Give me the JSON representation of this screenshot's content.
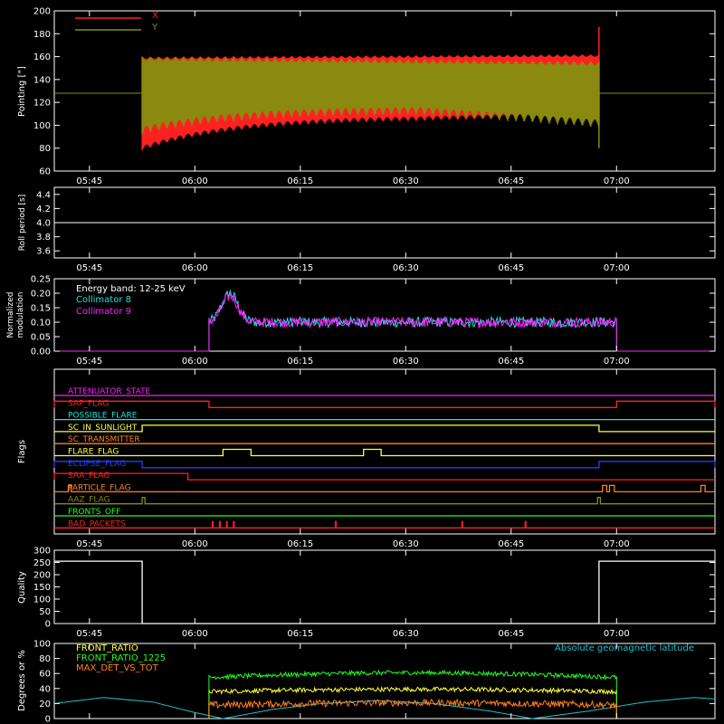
{
  "time_axis": {
    "t_min_minutes": 340,
    "t_max_minutes": 434,
    "ticks": [
      {
        "t": 345,
        "label": "05:45"
      },
      {
        "t": 360,
        "label": "06:00"
      },
      {
        "t": 375,
        "label": "06:15"
      },
      {
        "t": 390,
        "label": "06:30"
      },
      {
        "t": 405,
        "label": "06:45"
      },
      {
        "t": 420,
        "label": "07:00"
      }
    ]
  },
  "chart_data": [
    {
      "id": "pointing",
      "type": "line",
      "ylabel": "Pointing [\"]",
      "ylim": [
        60,
        200
      ],
      "yticks": [
        60,
        80,
        100,
        120,
        140,
        160,
        180,
        200
      ],
      "legend_position": "top-left",
      "baseline_y": 128,
      "series": [
        {
          "name": "X",
          "color": "#ff2020",
          "envelope": {
            "t_start": 352.5,
            "t_end": 417.5,
            "lower_start": 78,
            "lower_mid": 105,
            "lower_end": 107,
            "upper_start": 160,
            "upper_end": 162,
            "spike_end": 186
          }
        },
        {
          "name": "Y",
          "color": "#8a8a10",
          "envelope": {
            "t_start": 352.5,
            "t_end": 417.5,
            "lower_start": 92,
            "lower_mid": 110,
            "lower_end": 98,
            "upper_start": 160,
            "upper_end": 156,
            "spike_end": 80
          }
        }
      ]
    },
    {
      "id": "roll",
      "type": "line",
      "ylabel": "Roll period [s]",
      "ylim": [
        3.5,
        4.5
      ],
      "yticks": [
        3.6,
        3.8,
        4.0,
        4.2,
        4.4
      ],
      "series": [
        {
          "color": "#ffffff",
          "value": 4.0
        }
      ]
    },
    {
      "id": "modulation",
      "type": "line",
      "ylabel": [
        "Normalized",
        "modulation"
      ],
      "ylim": [
        0,
        0.25
      ],
      "yticks": [
        0.0,
        0.05,
        0.1,
        0.15,
        0.2,
        0.25
      ],
      "annotation": "Energy band: 12-25 keV",
      "t_start": 362,
      "t_end": 420,
      "series": [
        {
          "name": "Collimator 8",
          "color": "#20e0e0",
          "level": 0.1,
          "peak": 0.2,
          "peak_t": 365
        },
        {
          "name": "Collimator 9",
          "color": "#ff20ff",
          "level": 0.1,
          "peak": 0.19,
          "peak_t": 365
        }
      ]
    },
    {
      "id": "flags",
      "type": "line",
      "ylabel": "Flags",
      "series": [
        {
          "name": "ATTENUATOR_STATE",
          "color": "#ff20ff",
          "on": []
        },
        {
          "name": "SAP_FLAG",
          "color": "#ff2020",
          "on": [
            [
              340,
              362
            ],
            [
              420,
              434
            ]
          ]
        },
        {
          "name": "POSSIBLE_FLARE",
          "color": "#20e0e0",
          "on": []
        },
        {
          "name": "SC_IN_SUNLIGHT",
          "color": "#ffff40",
          "on": [
            [
              352.5,
              417.5
            ]
          ]
        },
        {
          "name": "SC_TRANSMITTER",
          "color": "#ff8020",
          "on": []
        },
        {
          "name": "FLARE_FLAG",
          "color": "#ffff40",
          "on": [
            [
              364,
              368
            ],
            [
              384,
              386.5
            ]
          ]
        },
        {
          "name": "ECLIPSE_FLAG",
          "color": "#2040ff",
          "on": [
            [
              340,
              352.5
            ],
            [
              417.5,
              434
            ]
          ]
        },
        {
          "name": "SAA_FLAG",
          "color": "#ff2020",
          "on": [
            [
              340,
              359
            ]
          ]
        },
        {
          "name": "PARTICLE_FLAG",
          "color": "#ff8020",
          "on": [
            [
              342,
              342.4
            ],
            [
              418,
              418.6
            ],
            [
              419,
              419.7
            ],
            [
              432,
              432.6
            ]
          ]
        },
        {
          "name": "AAZ_FLAG",
          "color": "#8a8a10",
          "on": [
            [
              352.5,
              352.9
            ],
            [
              417.3,
              417.7
            ]
          ]
        },
        {
          "name": "FRONTS_OFF",
          "color": "#20ff20",
          "on": []
        },
        {
          "name": "BAD_PACKETS",
          "color": "#ff2020",
          "on": [
            [
              362.5,
              362.6
            ],
            [
              363.5,
              363.6
            ],
            [
              364.5,
              364.6
            ],
            [
              365.5,
              365.6
            ],
            [
              380,
              380.1
            ],
            [
              398,
              398.1
            ],
            [
              407,
              407.1
            ]
          ]
        }
      ]
    },
    {
      "id": "quality",
      "type": "line",
      "ylabel": "Quality",
      "ylim": [
        0,
        300
      ],
      "yticks": [
        0,
        50,
        100,
        150,
        200,
        250,
        300
      ],
      "series": [
        {
          "color": "#ffffff",
          "segments": [
            [
              340,
              352.5,
              255
            ],
            [
              352.5,
              417.5,
              0
            ],
            [
              417.5,
              434,
              255
            ]
          ]
        }
      ]
    },
    {
      "id": "ratios",
      "type": "line",
      "ylabel": "Degrees or %",
      "ylim": [
        0,
        100
      ],
      "yticks": [
        0,
        20,
        40,
        60,
        80,
        100
      ],
      "t_start": 362,
      "t_end": 420,
      "legend_position": "top-left",
      "series": [
        {
          "name": "FRONT_RATIO",
          "color": "#ffff40",
          "level": 36
        },
        {
          "name": "FRONT_RATIO_1225",
          "color": "#20ff20",
          "level": 55
        },
        {
          "name": "MAX_DET_VS_TOT",
          "color": "#ff8020",
          "level": 18
        },
        {
          "name": "Absolute geomagnetic latitude",
          "color": "#20c0d0",
          "legend_position": "top-right",
          "points": [
            [
              340,
              20
            ],
            [
              347,
              28
            ],
            [
              354,
              22
            ],
            [
              360,
              8
            ],
            [
              364,
              0
            ],
            [
              371,
              12
            ],
            [
              378,
              20
            ],
            [
              386,
              24
            ],
            [
              394,
              20
            ],
            [
              402,
              10
            ],
            [
              408,
              0
            ],
            [
              416,
              10
            ],
            [
              424,
              22
            ],
            [
              431,
              28
            ],
            [
              434,
              26
            ]
          ]
        }
      ]
    }
  ]
}
